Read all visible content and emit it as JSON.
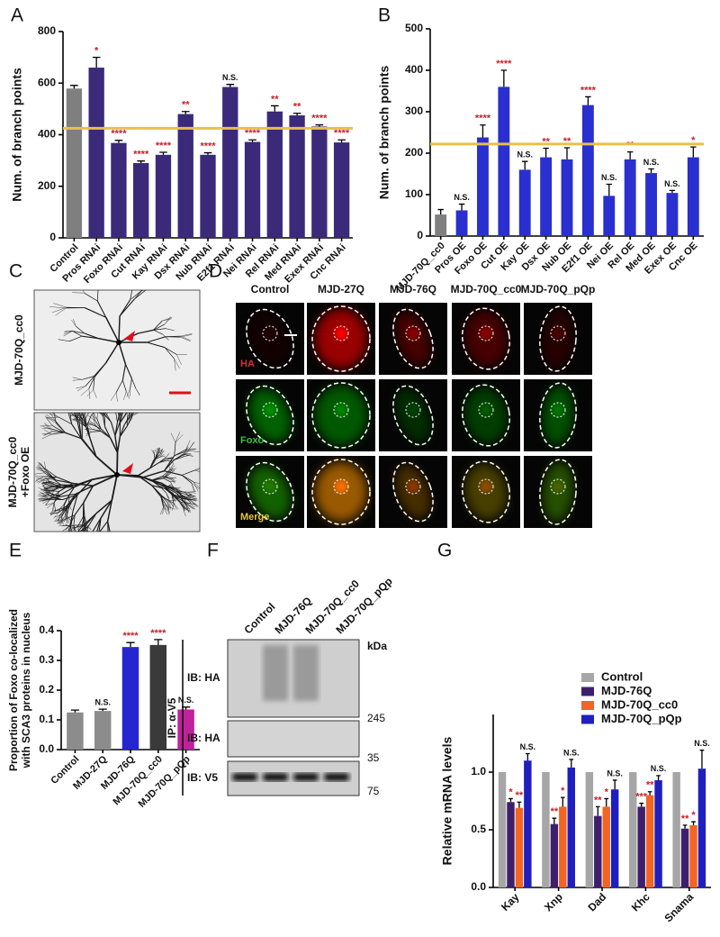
{
  "chart_data": [
    {
      "type": "bar",
      "panel_label": "A",
      "ylabel": "Num. of branch points",
      "categories": [
        "Control",
        "Pros RNAi",
        "Foxo RNAi",
        "Cut RNAi",
        "Kay RNAi",
        "Dsx RNAi",
        "Nub RNAi",
        "E2f1 RNAi",
        "Nei RNAi",
        "Rel RNAi",
        "Med RNAi",
        "Exex RNAi",
        "Cnc RNAi"
      ],
      "values": [
        579,
        660,
        368,
        290,
        322,
        480,
        322,
        585,
        372,
        490,
        475,
        432,
        370
      ],
      "errors": [
        12,
        40,
        10,
        8,
        10,
        10,
        8,
        10,
        8,
        22,
        8,
        6,
        10
      ],
      "colors": [
        "#7f7f7f",
        "#3b2a7a",
        "#3b2a7a",
        "#3b2a7a",
        "#3b2a7a",
        "#3b2a7a",
        "#3b2a7a",
        "#3b2a7a",
        "#3b2a7a",
        "#3b2a7a",
        "#3b2a7a",
        "#3b2a7a",
        "#3b2a7a"
      ],
      "annotations": [
        null,
        "*",
        "****",
        "****",
        "****",
        "**",
        "****",
        "N.S.",
        "****",
        "**",
        "**",
        "****",
        "****"
      ],
      "reference_line": 425,
      "reference_color": "#e8c04a",
      "ylim": [
        0,
        800
      ],
      "yticks": [
        0,
        200,
        400,
        600,
        800
      ]
    },
    {
      "type": "bar",
      "panel_label": "B",
      "ylabel": "Num. of branch points",
      "categories": [
        "MJD-70Q_cc0",
        "Pros OE",
        "Foxo OE",
        "Cut OE",
        "Kay OE",
        "Dsx OE",
        "Nub OE",
        "E2f1 OE",
        "Nei OE",
        "Rel OE",
        "Med OE",
        "Exex OE",
        "Cnc OE"
      ],
      "values": [
        52,
        62,
        238,
        360,
        160,
        190,
        185,
        316,
        97,
        185,
        152,
        104,
        190
      ],
      "errors": [
        12,
        15,
        30,
        40,
        20,
        22,
        28,
        20,
        28,
        18,
        10,
        6,
        25
      ],
      "colors": [
        "#7f7f7f",
        "#2a2fcf",
        "#2a2fcf",
        "#2a2fcf",
        "#2a2fcf",
        "#2a2fcf",
        "#2a2fcf",
        "#2a2fcf",
        "#2a2fcf",
        "#2a2fcf",
        "#2a2fcf",
        "#2a2fcf",
        "#2a2fcf"
      ],
      "annotations": [
        null,
        "N.S.",
        "****",
        "****",
        "N.S.",
        "**",
        "**",
        "****",
        "N.S.",
        "**",
        "N.S.",
        "N.S.",
        "*"
      ],
      "reference_line": 222,
      "reference_color": "#e8c04a",
      "ylim": [
        0,
        500
      ],
      "yticks": [
        0,
        100,
        200,
        300,
        400,
        500
      ]
    },
    {
      "type": "bar",
      "panel_label": "E",
      "ylabel": [
        "Proportion of Foxo co-localized",
        "with SCA3 proteins in nucleus"
      ],
      "categories": [
        "Control",
        "MJD-27Q",
        "MJD-76Q",
        "MJD-70Q_cc0",
        "MJD-70Q_pQp"
      ],
      "values": [
        0.125,
        0.13,
        0.345,
        0.352,
        0.135
      ],
      "errors": [
        0.008,
        0.006,
        0.015,
        0.018,
        0.008
      ],
      "colors": [
        "#8c8c8c",
        "#8c8c8c",
        "#2626d0",
        "#3a3a3a",
        "#c0219c"
      ],
      "annotations": [
        null,
        "N.S.",
        "****",
        "****",
        "N.S."
      ],
      "ylim": [
        0,
        0.4
      ],
      "yticks": [
        {
          "value": 0,
          "label": "0.0"
        },
        0.1,
        0.2,
        0.3,
        0.4
      ]
    },
    {
      "type": "bar",
      "panel_label": "G",
      "ylabel": "Relative mRNA levels",
      "categories": [
        "Kay",
        "Xnp",
        "Dad",
        "Khc",
        "Snama"
      ],
      "series": [
        {
          "name": "Control",
          "color": "#a6a6a6",
          "values": [
            1,
            1,
            1,
            1,
            1
          ]
        },
        {
          "name": "MJD-76Q",
          "color": "#3d1f6e",
          "values": [
            0.74,
            0.55,
            0.62,
            0.7,
            0.51
          ],
          "errors": [
            0.03,
            0.05,
            0.08,
            0.03,
            0.03
          ],
          "annotations": [
            "*",
            "**",
            "**",
            "***",
            "**"
          ]
        },
        {
          "name": "MJD-70Q_cc0",
          "color": "#f26522",
          "values": [
            0.69,
            0.7,
            0.7,
            0.8,
            0.54
          ],
          "errors": [
            0.05,
            0.08,
            0.07,
            0.03,
            0.03
          ],
          "annotations": [
            "**",
            "*",
            "*",
            "**",
            "*"
          ]
        },
        {
          "name": "MJD-70Q_pQp",
          "color": "#1f1fbf",
          "values": [
            1.1,
            1.04,
            0.85,
            0.93,
            1.03
          ],
          "errors": [
            0.06,
            0.07,
            0.08,
            0.04,
            0.16
          ],
          "annotations": [
            "N.S.",
            "N.S.",
            "N.S.",
            "N.S.",
            "N.S."
          ]
        }
      ],
      "legend": "top-right",
      "ylim": [
        0,
        1.5
      ],
      "yticks": [
        {
          "value": 0,
          "label": "0.0"
        },
        0.5,
        {
          "value": 1,
          "label": "1.0"
        }
      ]
    }
  ],
  "micrographs": {
    "panel_label": "C",
    "rows": [
      [
        "MJD-70Q_cc0"
      ],
      [
        "MJD-70Q_cc0",
        "+Foxo OE"
      ]
    ]
  },
  "imaging": {
    "panel_label": "D",
    "columns": [
      "Control",
      "MJD-27Q",
      "MJD-76Q",
      "MJD-70Q_cc0",
      "MJD-70Q_pQp"
    ],
    "channels": [
      "HA",
      "Foxo",
      "Merge"
    ]
  },
  "western_blot": {
    "panel_label": "F",
    "lanes": [
      "Control",
      "MJD-76Q",
      "MJD-70Q_cc0",
      "MJD-70Q_pQp"
    ],
    "blots": [
      "IB: HA",
      "IB: HA",
      "IB: V5"
    ],
    "ip_label": "IP: α-V5",
    "unit": "kDa",
    "markers": [
      245,
      35,
      75
    ]
  }
}
